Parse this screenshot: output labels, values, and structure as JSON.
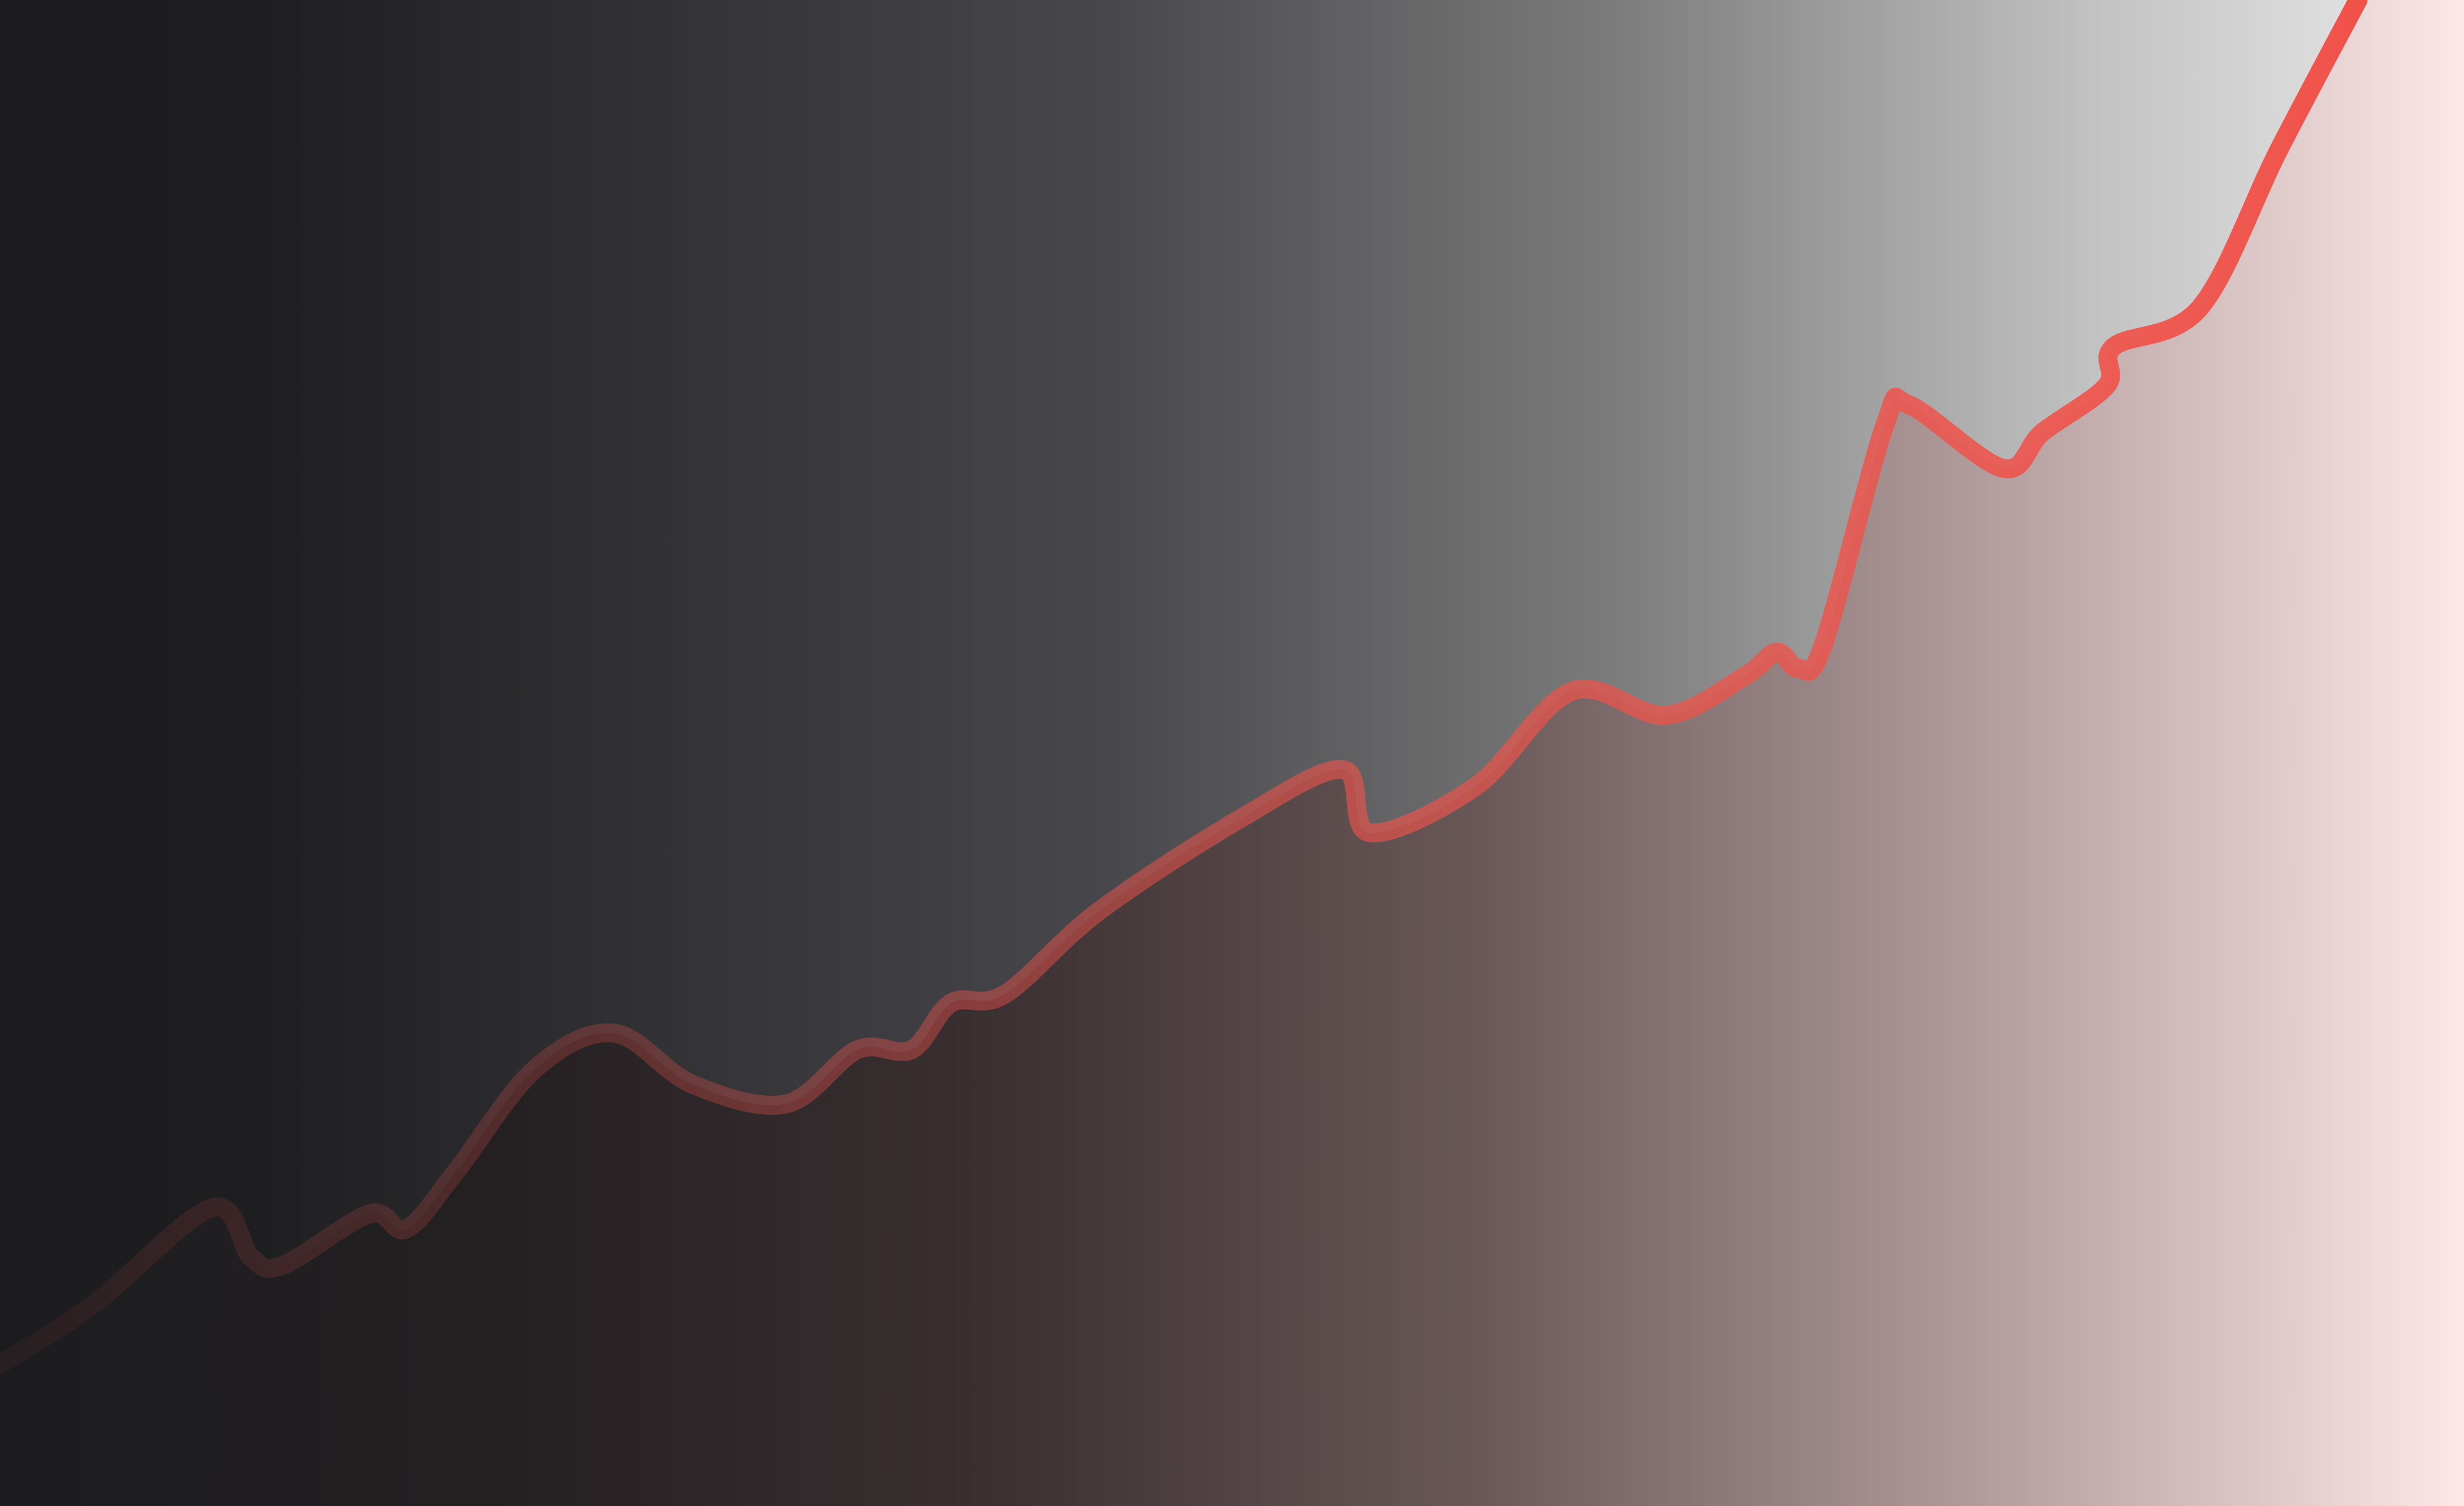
{
  "chart_data": {
    "type": "area",
    "xlim": [
      0,
      100
    ],
    "ylim": [
      0,
      100
    ],
    "series": [
      {
        "color": "#f0524a",
        "x": [
          0,
          3.8,
          8.6,
          10.2,
          11.5,
          15.0,
          16.5,
          18.5,
          21.7,
          24.9,
          28.1,
          31.9,
          34.8,
          37.0,
          38.6,
          40.8,
          44.6,
          50.4,
          54.5,
          55.6,
          59.9,
          63.8,
          67.6,
          70.8,
          72.1,
          73.0,
          74.0,
          76.5,
          77.5,
          81.3,
          82.9,
          85.5,
          85.8,
          89.3,
          92.5,
          95.7
        ],
        "values": [
          9.4,
          13.4,
          19.8,
          16.5,
          16.0,
          19.4,
          18.4,
          22.2,
          29.0,
          31.4,
          28.0,
          26.7,
          30.3,
          30.3,
          33.4,
          34.0,
          39.5,
          45.7,
          48.9,
          44.7,
          47.8,
          54.1,
          52.5,
          55.1,
          56.7,
          55.6,
          57.2,
          71.8,
          73.1,
          68.9,
          71.3,
          74.4,
          77.0,
          79.6,
          90.1,
          100
        ]
      }
    ]
  }
}
